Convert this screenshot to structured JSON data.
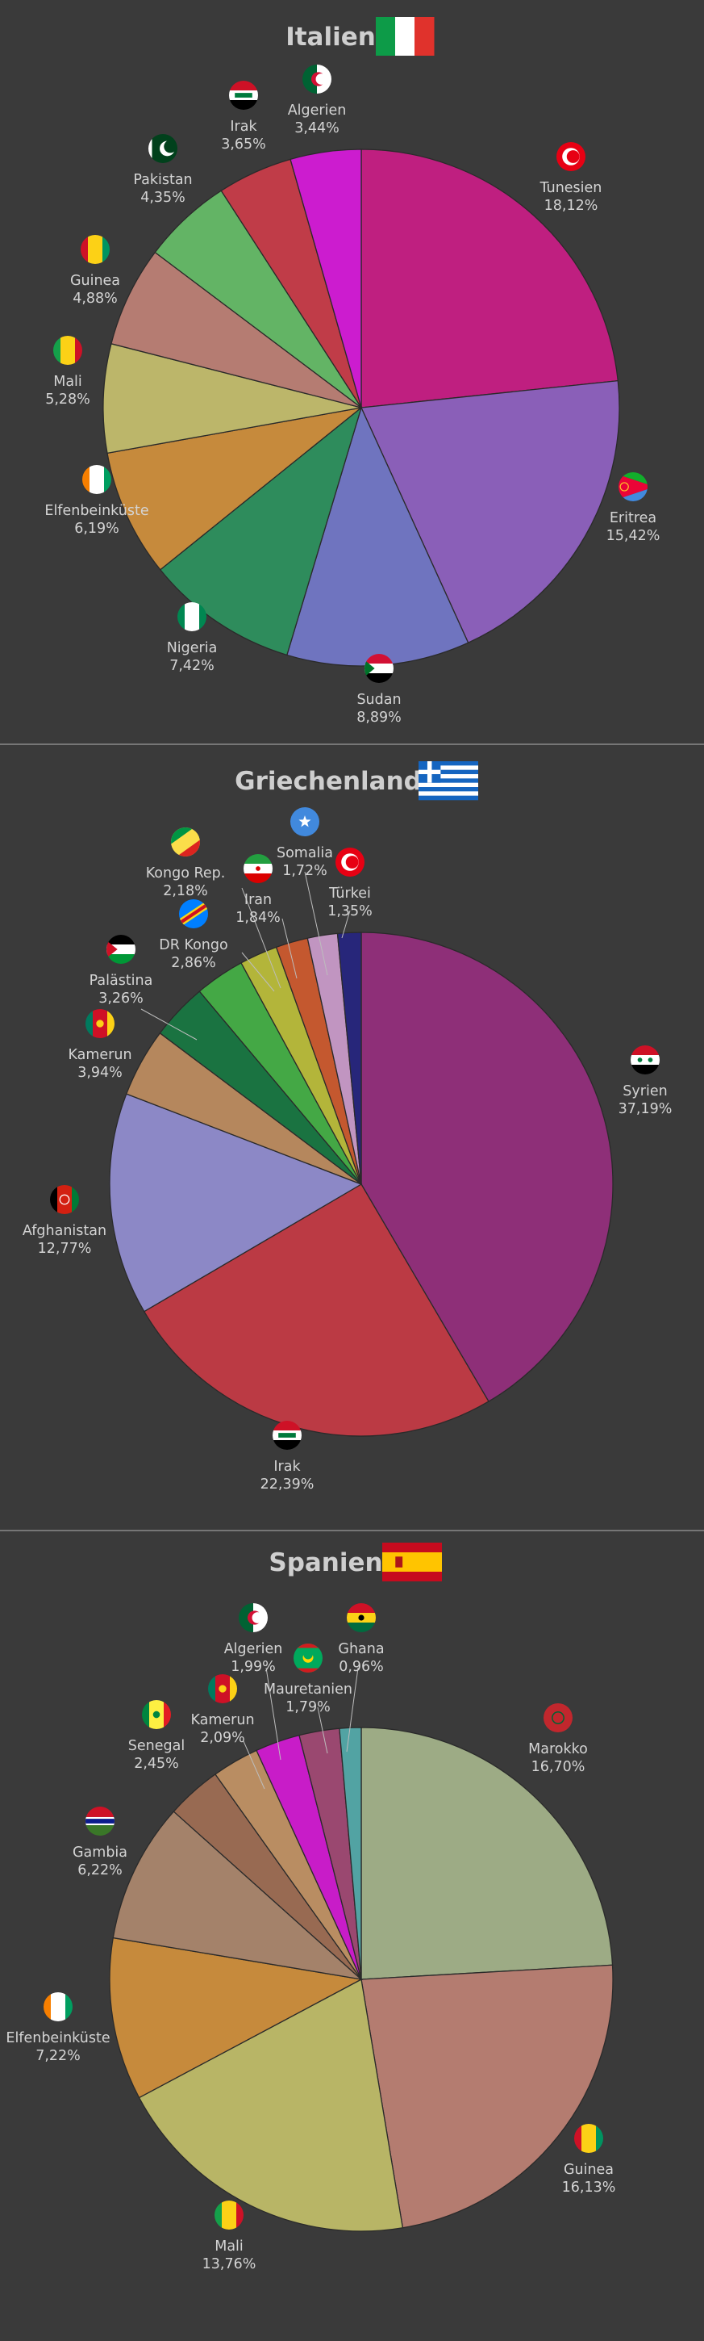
{
  "chart_data": [
    {
      "type": "pie",
      "title": "Italien",
      "flag": "italy",
      "slices": [
        {
          "label": "Tunesien",
          "value": 18.12,
          "value_text": "18,12%",
          "color": "#bf1f80",
          "flag": "tunisia"
        },
        {
          "label": "Eritrea",
          "value": 15.42,
          "value_text": "15,42%",
          "color": "#8a5fb8",
          "flag": "eritrea"
        },
        {
          "label": "Sudan",
          "value": 8.89,
          "value_text": "8,89%",
          "color": "#6f74bf",
          "flag": "sudan"
        },
        {
          "label": "Nigeria",
          "value": 7.42,
          "value_text": "7,42%",
          "color": "#2e8c5c",
          "flag": "nigeria"
        },
        {
          "label": "Elfenbeinküste",
          "value": 6.19,
          "value_text": "6,19%",
          "color": "#c68a3c",
          "flag": "ivory-coast"
        },
        {
          "label": "Mali",
          "value": 5.28,
          "value_text": "5,28%",
          "color": "#bcb66a",
          "flag": "mali"
        },
        {
          "label": "Guinea",
          "value": 4.88,
          "value_text": "4,88%",
          "color": "#b57c72",
          "flag": "guinea"
        },
        {
          "label": "Pakistan",
          "value": 4.35,
          "value_text": "4,35%",
          "color": "#63b465",
          "flag": "pakistan"
        },
        {
          "label": "Irak",
          "value": 3.65,
          "value_text": "3,65%",
          "color": "#c03c48",
          "flag": "iraq"
        },
        {
          "label": "Algerien",
          "value": 3.44,
          "value_text": "3,44%",
          "color": "#cc1ccf",
          "flag": "algeria"
        }
      ]
    },
    {
      "type": "pie",
      "title": "Griechenland",
      "flag": "greece",
      "slices": [
        {
          "label": "Syrien",
          "value": 37.19,
          "value_text": "37,19%",
          "color": "#8e2f78",
          "flag": "syria"
        },
        {
          "label": "Irak",
          "value": 22.39,
          "value_text": "22,39%",
          "color": "#bb3a44",
          "flag": "iraq"
        },
        {
          "label": "Afghanistan",
          "value": 12.77,
          "value_text": "12,77%",
          "color": "#8c88c6",
          "flag": "afghanistan"
        },
        {
          "label": "Kamerun",
          "value": 3.94,
          "value_text": "3,94%",
          "color": "#b5875d",
          "flag": "cameroon"
        },
        {
          "label": "Palästina",
          "value": 3.26,
          "value_text": "3,26%",
          "color": "#1a7341",
          "flag": "palestine"
        },
        {
          "label": "DR Kongo",
          "value": 2.86,
          "value_text": "2,86%",
          "color": "#44a845",
          "flag": "dr-congo"
        },
        {
          "label": "Kongo Rep.",
          "value": 2.18,
          "value_text": "2,18%",
          "color": "#b3b53a",
          "flag": "congo"
        },
        {
          "label": "Iran",
          "value": 1.84,
          "value_text": "1,84%",
          "color": "#c4582f",
          "flag": "iran"
        },
        {
          "label": "Somalia",
          "value": 1.72,
          "value_text": "1,72%",
          "color": "#c195c1",
          "flag": "somalia"
        },
        {
          "label": "Türkei",
          "value": 1.35,
          "value_text": "1,35%",
          "color": "#27267a",
          "flag": "turkey"
        }
      ]
    },
    {
      "type": "pie",
      "title": "Spanien",
      "flag": "spain",
      "slices": [
        {
          "label": "Marokko",
          "value": 16.7,
          "value_text": "16,70%",
          "color": "#9dab85",
          "flag": "morocco"
        },
        {
          "label": "Guinea",
          "value": 16.13,
          "value_text": "16,13%",
          "color": "#b47c70",
          "flag": "guinea"
        },
        {
          "label": "Mali",
          "value": 13.76,
          "value_text": "13,76%",
          "color": "#b8b566",
          "flag": "mali"
        },
        {
          "label": "Elfenbeinküste",
          "value": 7.22,
          "value_text": "7,22%",
          "color": "#c68a3c",
          "flag": "ivory-coast"
        },
        {
          "label": "Gambia",
          "value": 6.22,
          "value_text": "6,22%",
          "color": "#a4826a",
          "flag": "gambia"
        },
        {
          "label": "Senegal",
          "value": 2.45,
          "value_text": "2,45%",
          "color": "#986a52",
          "flag": "senegal"
        },
        {
          "label": "Kamerun",
          "value": 2.09,
          "value_text": "2,09%",
          "color": "#b98d62",
          "flag": "cameroon"
        },
        {
          "label": "Algerien",
          "value": 1.99,
          "value_text": "1,99%",
          "color": "#c81cc8",
          "flag": "algeria"
        },
        {
          "label": "Mauretanien",
          "value": 1.79,
          "value_text": "1,79%",
          "color": "#9a4870",
          "flag": "mauritania"
        },
        {
          "label": "Ghana",
          "value": 0.96,
          "value_text": "0,96%",
          "color": "#52a3a3",
          "flag": "ghana"
        }
      ]
    }
  ]
}
